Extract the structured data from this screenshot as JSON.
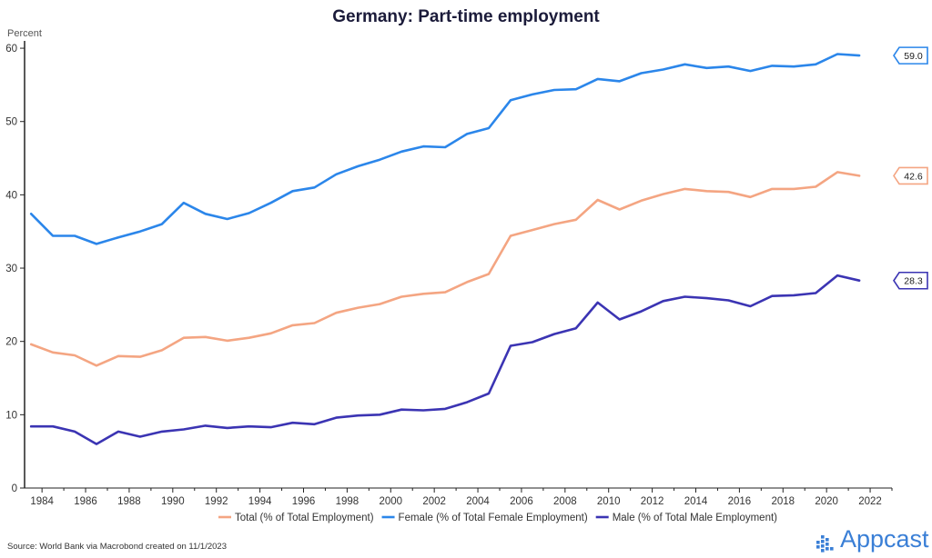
{
  "footer": {
    "source": "Source: World Bank via Macrobond created on 11/1/2023",
    "brand": "Appcast",
    "brand_color": "#3a7fd6"
  },
  "chart_data": {
    "type": "line",
    "title": "Germany: Part-time employment",
    "ylabel": "Percent",
    "xlabel": "",
    "xlim": [
      1983.2,
      2023
    ],
    "ylim": [
      0,
      61
    ],
    "x_ticks": [
      1984,
      1986,
      1988,
      1990,
      1992,
      1994,
      1996,
      1998,
      2000,
      2002,
      2004,
      2006,
      2008,
      2010,
      2012,
      2014,
      2016,
      2018,
      2020,
      2022
    ],
    "y_ticks": [
      0,
      10,
      20,
      30,
      40,
      50,
      60
    ],
    "grid": false,
    "legend_position": "bottom",
    "x": [
      1983.5,
      1984.5,
      1985.5,
      1986.5,
      1987.5,
      1988.5,
      1989.5,
      1990.5,
      1991.5,
      1992.5,
      1993.5,
      1994.5,
      1995.5,
      1996.5,
      1997.5,
      1998.5,
      1999.5,
      2000.5,
      2001.5,
      2002.5,
      2003.5,
      2004.5,
      2005.5,
      2006.5,
      2007.5,
      2008.5,
      2009.5,
      2010.5,
      2011.5,
      2012.5,
      2013.5,
      2014.5,
      2015.5,
      2016.5,
      2017.5,
      2018.5,
      2019.5,
      2020.5,
      2021.5
    ],
    "series": [
      {
        "name": "Total (% of Total Employment)",
        "color": "#f4a582",
        "end_label": "42.6",
        "values": [
          19.6,
          18.5,
          18.1,
          16.7,
          18.0,
          17.9,
          18.8,
          20.5,
          20.6,
          20.1,
          20.5,
          21.1,
          22.2,
          22.5,
          23.9,
          24.6,
          25.1,
          26.1,
          26.5,
          26.7,
          28.1,
          29.2,
          34.4,
          35.2,
          36.0,
          36.6,
          39.3,
          38.0,
          39.2,
          40.1,
          40.8,
          40.5,
          40.4,
          39.7,
          40.8,
          40.8,
          41.1,
          43.1,
          42.6
        ]
      },
      {
        "name": "Female (% of Total Female Employment)",
        "color": "#2b86ea",
        "end_label": "59.0",
        "values": [
          37.4,
          34.4,
          34.4,
          33.3,
          34.2,
          35.0,
          36.0,
          38.9,
          37.4,
          36.7,
          37.5,
          38.9,
          40.5,
          41.0,
          42.8,
          43.9,
          44.8,
          45.9,
          46.6,
          46.5,
          48.3,
          49.1,
          52.9,
          53.7,
          54.3,
          54.4,
          55.8,
          55.5,
          56.6,
          57.1,
          57.8,
          57.3,
          57.5,
          56.9,
          57.6,
          57.5,
          57.8,
          59.2,
          59.0
        ]
      },
      {
        "name": "Male (% of Total Male Employment)",
        "color": "#3b34b3",
        "end_label": "28.3",
        "values": [
          8.4,
          8.4,
          7.7,
          6.0,
          7.7,
          7.0,
          7.7,
          8.0,
          8.5,
          8.2,
          8.4,
          8.3,
          8.9,
          8.7,
          9.6,
          9.9,
          10.0,
          10.7,
          10.6,
          10.8,
          11.7,
          12.9,
          19.4,
          19.9,
          21.0,
          21.8,
          25.3,
          23.0,
          24.1,
          25.5,
          26.1,
          25.9,
          25.6,
          24.8,
          26.2,
          26.3,
          26.6,
          29.0,
          28.3
        ]
      }
    ]
  }
}
